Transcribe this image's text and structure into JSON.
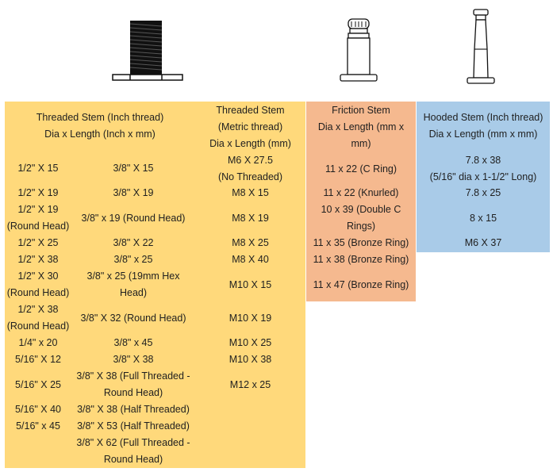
{
  "headers": {
    "inch": [
      "Threaded Stem (Inch thread)",
      "Dia x Length (Inch x mm)"
    ],
    "metric": [
      "Threaded Stem",
      "(Metric thread)",
      "Dia x Length (mm)"
    ],
    "friction": [
      "Friction Stem",
      "Dia x Length (mm x",
      "mm)"
    ],
    "hooded": [
      "Hooded Stem (Inch thread)",
      "Dia x Length (mm x mm)"
    ]
  },
  "inch_a": [
    [
      "1/2\" X 15"
    ],
    [
      "1/2\" X 19"
    ],
    [
      "1/2\" X 19",
      "(Round Head)"
    ],
    [
      "1/2\" X 25"
    ],
    [
      "1/2\" X 38"
    ],
    [
      "1/2\" X 30",
      "(Round Head)"
    ],
    [
      "1/2\" X 38",
      "(Round Head)"
    ],
    [
      "1/4\" x 20"
    ],
    [
      "5/16\" X 12"
    ],
    [
      "5/16\" X 25"
    ],
    [
      "5/16\" X 40"
    ],
    [
      "5/16\" x 45"
    ]
  ],
  "inch_b": [
    [
      "3/8\" X 15"
    ],
    [
      "3/8\" X 19"
    ],
    [
      "3/8\" x 19 (Round Head)"
    ],
    [
      "3/8\" X 22"
    ],
    [
      "3/8\" x 25"
    ],
    [
      "3/8\" x 25 (19mm Hex",
      "Head)"
    ],
    [
      "3/8\" X 32 (Round Head)"
    ],
    [
      "3/8\" x 45"
    ],
    [
      "3/8\" X 38"
    ],
    [
      "3/8\" X 38 (Full Threaded -",
      "Round Head)"
    ],
    [
      "3/8\" X 38 (Half Threaded)"
    ],
    [
      "3/8\" X 53 (Half Threaded)"
    ],
    [
      "3/8\" X 62 (Full Threaded -",
      "Round Head)"
    ]
  ],
  "metric": [
    [
      "M6 X 27.5",
      "(No Threaded)"
    ],
    [
      "M8 X 15"
    ],
    [
      "M8 X 19"
    ],
    [
      "M8 X 25"
    ],
    [
      "M8 X 40"
    ],
    [
      "M10 X 15"
    ],
    [
      "M10 X 19"
    ],
    [
      "M10 X 25"
    ],
    [
      "M10 X 38"
    ],
    [
      "M12 x 25"
    ]
  ],
  "friction": [
    [
      "11 x 22 (C Ring)"
    ],
    [
      "11 x 22 (Knurled)"
    ],
    [
      "10 x 39 (Double C Rings)"
    ],
    [
      "11 x 35 (Bronze Ring)"
    ],
    [
      "11 x 38 (Bronze Ring)"
    ],
    [
      "11 x 47 (Bronze Ring)"
    ]
  ],
  "hooded": [
    [
      "7.8 x 38",
      "(5/16\" dia x 1-1/2\" Long)"
    ],
    [
      "7.8 x 25"
    ],
    [
      "8 x 15"
    ],
    [
      "M6 X 37"
    ]
  ]
}
